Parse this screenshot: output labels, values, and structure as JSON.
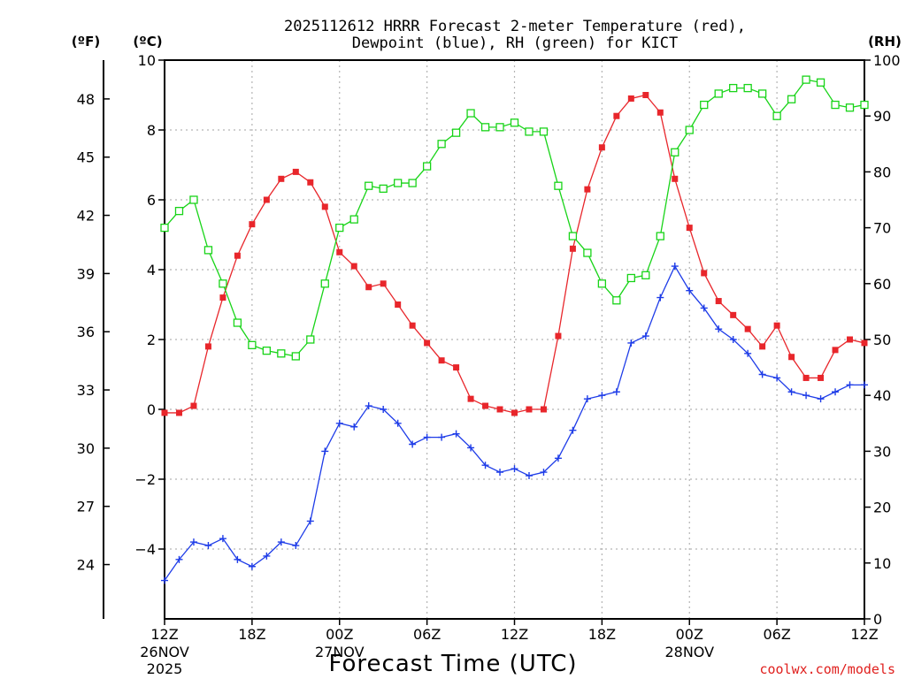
{
  "title_line1": "2025112612 HRRR Forecast 2-meter Temperature (red),",
  "title_line2": "Dewpoint (blue), RH (green) for KICT",
  "units": {
    "fahrenheit": "(ºF)",
    "celsius": "(ºC)",
    "rh": "(RH)"
  },
  "xlabel": "Forecast Time (UTC)",
  "credit": "coolwx.com/models",
  "colors": {
    "temperature": "#e8262b",
    "dewpoint": "#1e3ce8",
    "rh": "#18d418",
    "grid": "#b4b4b4"
  },
  "chart_data": {
    "type": "line",
    "x_tick_labels": [
      "12Z",
      "18Z",
      "00Z",
      "06Z",
      "12Z",
      "18Z",
      "00Z",
      "06Z",
      "12Z"
    ],
    "date_labels": [
      {
        "tick": 0,
        "lines": [
          "26NOV",
          "2025"
        ]
      },
      {
        "tick": 2,
        "lines": [
          "27NOV"
        ]
      },
      {
        "tick": 6,
        "lines": [
          "28NOV"
        ]
      }
    ],
    "x_hours": [
      0,
      1,
      2,
      3,
      4,
      5,
      6,
      7,
      8,
      9,
      10,
      11,
      12,
      13,
      14,
      15,
      16,
      17,
      18,
      19,
      20,
      21,
      22,
      23,
      24,
      25,
      26,
      27,
      28,
      29,
      30,
      31,
      32,
      33,
      34,
      35,
      36,
      37,
      38,
      39,
      40,
      41,
      42,
      43,
      44,
      45,
      46,
      47,
      48
    ],
    "xlim": [
      0,
      48
    ],
    "y_left_celsius": {
      "ticks": [
        10,
        8,
        6,
        4,
        2,
        0,
        -2,
        -4
      ],
      "ylim": [
        -6,
        10
      ]
    },
    "y_left_fahrenheit": {
      "ticks": [
        48,
        45,
        42,
        39,
        36,
        33,
        30,
        27,
        24
      ]
    },
    "y_right_rh": {
      "ticks": [
        100,
        90,
        80,
        70,
        60,
        50,
        40,
        30,
        20,
        10,
        0
      ],
      "ylim": [
        0,
        100
      ]
    },
    "grid": true,
    "series": [
      {
        "name": "Temperature (red)",
        "axis": "celsius",
        "marker": "filled-square",
        "values": [
          -0.1,
          -0.1,
          0.1,
          1.8,
          3.2,
          4.4,
          5.3,
          6.0,
          6.6,
          6.8,
          6.5,
          5.8,
          4.5,
          4.1,
          3.5,
          3.6,
          3.0,
          2.4,
          1.9,
          1.4,
          1.2,
          0.3,
          0.1,
          0.0,
          -0.1,
          0.0,
          0.0,
          2.1,
          4.6,
          6.3,
          7.5,
          8.4,
          8.9,
          9.0,
          8.5,
          6.6,
          5.2,
          3.9,
          3.1,
          2.7,
          2.3,
          1.8,
          2.4,
          1.5,
          0.9,
          0.9,
          1.7,
          2.0,
          1.9
        ]
      },
      {
        "name": "Dewpoint (blue)",
        "axis": "celsius",
        "marker": "plus",
        "values": [
          -4.9,
          -4.3,
          -3.8,
          -3.9,
          -3.7,
          -4.3,
          -4.5,
          -4.2,
          -3.8,
          -3.9,
          -3.2,
          -1.2,
          -0.4,
          -0.5,
          0.1,
          0.0,
          -0.4,
          -1.0,
          -0.8,
          -0.8,
          -0.7,
          -1.1,
          -1.6,
          -1.8,
          -1.7,
          -1.9,
          -1.8,
          -1.4,
          -0.6,
          0.3,
          0.4,
          0.5,
          1.9,
          2.1,
          3.2,
          4.1,
          3.4,
          2.9,
          2.3,
          2.0,
          1.6,
          1.0,
          0.9,
          0.5,
          0.4,
          0.3,
          0.5,
          0.7,
          0.7
        ]
      },
      {
        "name": "RH (green)",
        "axis": "rh",
        "marker": "open-square",
        "values": [
          70,
          73,
          75,
          66,
          60,
          53,
          49,
          48,
          47.5,
          47,
          50,
          60,
          70,
          71.5,
          77.5,
          77,
          78,
          78,
          81,
          85,
          87,
          90.5,
          88,
          88,
          88.8,
          87.2,
          87.2,
          77.5,
          68.5,
          65.5,
          60,
          57,
          61,
          61.5,
          68.5,
          83.5,
          87.5,
          92,
          94,
          95,
          95,
          94,
          90,
          93,
          96.5,
          96,
          92,
          91.5,
          92
        ]
      }
    ]
  }
}
